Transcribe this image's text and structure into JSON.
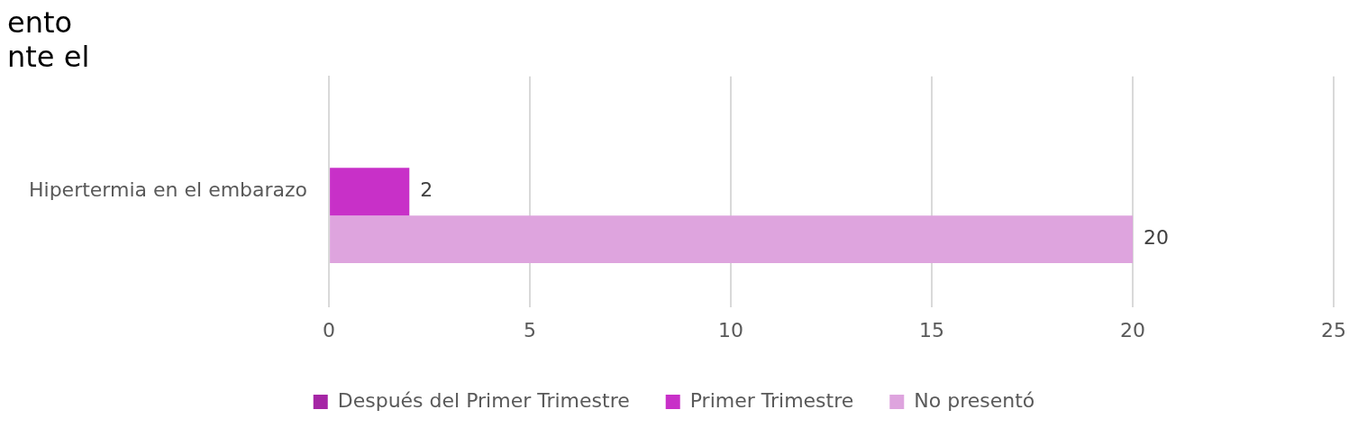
{
  "chart_data": {
    "type": "bar",
    "orientation": "horizontal",
    "title": "ento\nnte el",
    "categories": [
      "Hipertermia en el embarazo"
    ],
    "series": [
      {
        "name": "Después del Primer Trimestre",
        "color": "#a526a5",
        "values": [
          null
        ]
      },
      {
        "name": "Primer Trimestre",
        "color": "#c830c8",
        "values": [
          2
        ]
      },
      {
        "name": "No presentó",
        "color": "#dea4de",
        "values": [
          20
        ]
      }
    ],
    "xlim": [
      0,
      25
    ],
    "xticks": [
      0,
      5,
      10,
      15,
      20,
      25
    ],
    "grid": "x",
    "legend": "bottom",
    "data_labels": true
  }
}
